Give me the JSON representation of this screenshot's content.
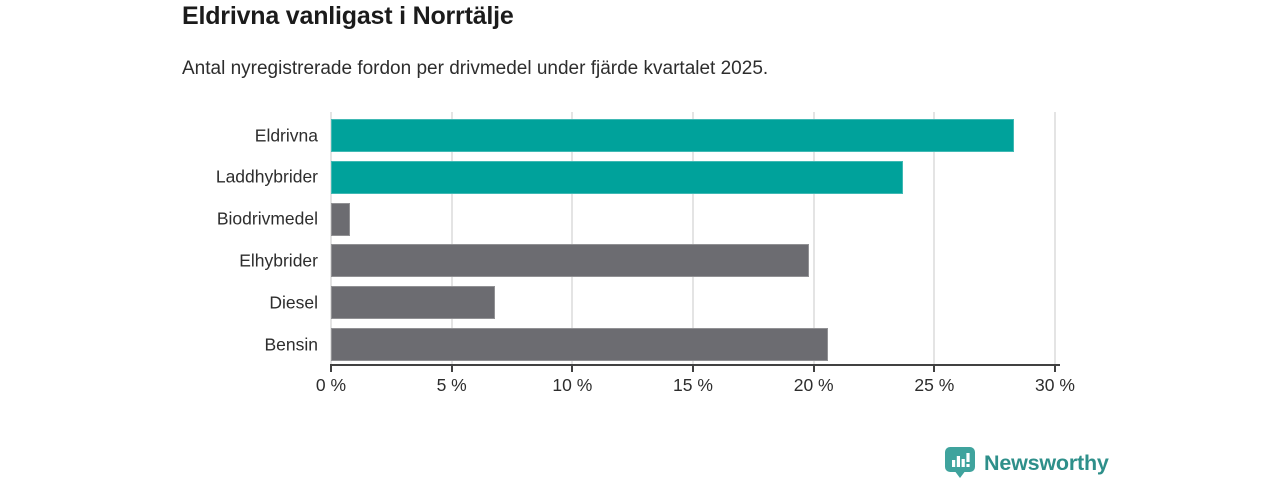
{
  "header": {
    "title": "Eldrivna vanligast i Norrtälje",
    "subtitle": "Antal nyregistrerade fordon per drivmedel under fjärde kvartalet 2025."
  },
  "chart_data": {
    "type": "bar",
    "orientation": "horizontal",
    "title": "Eldrivna vanligast i Norrtälje",
    "subtitle": "Antal nyregistrerade fordon per drivmedel under fjärde kvartalet 2025.",
    "categories": [
      "Eldrivna",
      "Laddhybrider",
      "Biodrivmedel",
      "Elhybrider",
      "Diesel",
      "Bensin"
    ],
    "values": [
      28.3,
      23.7,
      0.8,
      19.8,
      6.8,
      20.6
    ],
    "unit": "%",
    "bar_colors": [
      "#00a29b",
      "#00a29b",
      "#6c6c71",
      "#6c6c71",
      "#6c6c71",
      "#6c6c71"
    ],
    "highlight_color": "#00a29b",
    "default_color": "#6c6c71",
    "xlabel": "",
    "ylabel": "",
    "xlim": [
      0,
      30
    ],
    "x_ticks": [
      0,
      5,
      10,
      15,
      20,
      25,
      30
    ],
    "x_tick_labels": [
      "0 %",
      "5 %",
      "10 %",
      "15 %",
      "20 %",
      "25 %",
      "30 %"
    ],
    "grid": true,
    "gridline_color": "#e4e4e4",
    "axis_color": "#414141",
    "legend": "none"
  },
  "footer": {
    "brand": "Newsworthy",
    "brand_color": "#2e8f8a",
    "icon_color": "#3fa39d",
    "icon_name": "newsworthy-chart-bubble-icon"
  }
}
